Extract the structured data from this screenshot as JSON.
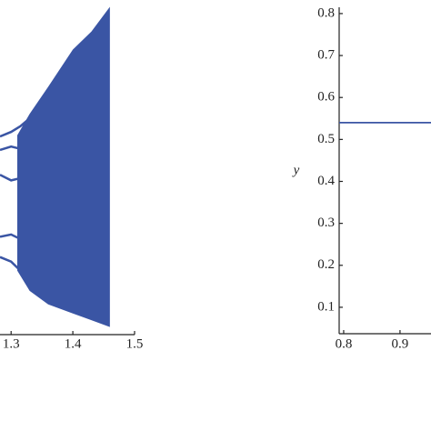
{
  "chart_data": [
    {
      "type": "bifurcation",
      "color": "#3a55a4",
      "xlim": [
        1.282,
        1.5
      ],
      "ylim": [
        -1.5,
        1.5
      ],
      "xticks": [
        1.3,
        1.4,
        1.5
      ],
      "branches": [
        {
          "x": [
            1.282,
            1.3,
            1.315,
            1.33
          ],
          "values": [
            0.29,
            0.33,
            0.38,
            0.45
          ]
        },
        {
          "x": [
            1.282,
            1.3,
            1.315,
            1.33
          ],
          "values": [
            0.17,
            0.2,
            0.18,
            0.15
          ]
        },
        {
          "x": [
            1.282,
            1.3,
            1.315,
            1.33
          ],
          "values": [
            -0.05,
            -0.1,
            -0.08,
            -0.05
          ]
        },
        {
          "x": [
            1.282,
            1.3,
            1.315,
            1.33
          ],
          "values": [
            -0.6,
            -0.58,
            -0.62,
            -0.65
          ]
        },
        {
          "x": [
            1.282,
            1.3,
            1.315,
            1.33
          ],
          "values": [
            -0.78,
            -0.82,
            -0.9,
            -0.98
          ]
        }
      ],
      "band": {
        "x": [
          1.31,
          1.33,
          1.36,
          1.4,
          1.43,
          1.46
        ],
        "upper": [
          0.3,
          0.49,
          0.73,
          1.06,
          1.22,
          1.44
        ],
        "lower": [
          -0.9,
          -1.08,
          -1.2,
          -1.28,
          -1.34,
          -1.4
        ]
      }
    },
    {
      "type": "line",
      "color": "#3a55a4",
      "ylabel": "y",
      "xlim": [
        0.792,
        0.955
      ],
      "ylim": [
        0.037,
        0.815
      ],
      "xticks": [
        0.8,
        0.9
      ],
      "yticks": [
        0.1,
        0.2,
        0.3,
        0.4,
        0.5,
        0.6,
        0.7,
        0.8
      ],
      "x": [
        0.792,
        0.955
      ],
      "values": [
        0.54,
        0.54
      ]
    }
  ]
}
